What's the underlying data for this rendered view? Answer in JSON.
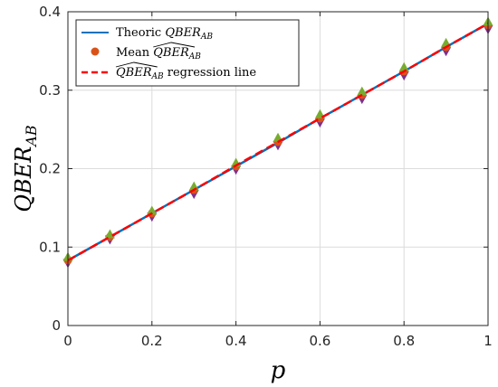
{
  "chart_data": {
    "type": "line",
    "xlabel": "p",
    "ylabel_main": "QBER",
    "ylabel_sub": "AB",
    "xlim": [
      0,
      1
    ],
    "ylim": [
      0,
      0.4
    ],
    "x_ticks": [
      0,
      0.2,
      0.4,
      0.6,
      0.8,
      1
    ],
    "x_tick_labels": [
      "0",
      "0.2",
      "0.4",
      "0.6",
      "0.8",
      "1"
    ],
    "y_ticks": [
      0,
      0.1,
      0.2,
      0.3,
      0.4
    ],
    "y_tick_labels": [
      "0",
      "0.1",
      "0.2",
      "0.3",
      "0.4"
    ],
    "grid": true,
    "legend_position": "top-left",
    "x": [
      0,
      0.1,
      0.2,
      0.3,
      0.4,
      0.5,
      0.6,
      0.7,
      0.8,
      0.9,
      1.0
    ],
    "series": [
      {
        "name": "Theoric QBER_AB",
        "legend_prefix": "Theoric ",
        "legend_math": "QBER",
        "legend_sub": "AB",
        "style": "solid-line",
        "color": "#0072BD",
        "values": [
          0.083,
          0.113,
          0.143,
          0.173,
          0.203,
          0.233,
          0.264,
          0.294,
          0.324,
          0.355,
          0.385
        ]
      },
      {
        "name": "Mean QBER_AB hat",
        "legend_prefix": "Mean ",
        "legend_math": "QBER",
        "legend_sub": "AB",
        "style": "markers",
        "color": "#D95319",
        "values": [
          0.083,
          0.113,
          0.143,
          0.173,
          0.203,
          0.234,
          0.264,
          0.294,
          0.324,
          0.355,
          0.383
        ]
      },
      {
        "name": "QBER_AB hat regression line",
        "legend_prefix": "",
        "legend_math": "QBER",
        "legend_sub": "AB",
        "legend_suffix": " regression line",
        "style": "dashed-line",
        "color": "#FF0000",
        "values": [
          0.083,
          0.113,
          0.143,
          0.173,
          0.204,
          0.234,
          0.264,
          0.294,
          0.324,
          0.355,
          0.385
        ]
      }
    ],
    "error_band": {
      "upper": [
        0.088,
        0.117,
        0.147,
        0.178,
        0.208,
        0.24,
        0.27,
        0.299,
        0.33,
        0.361,
        0.388
      ],
      "lower": [
        0.079,
        0.109,
        0.138,
        0.167,
        0.198,
        0.229,
        0.258,
        0.288,
        0.318,
        0.349,
        0.377
      ],
      "upper_color": "#77AC30",
      "lower_color": "#7E2F8E"
    }
  }
}
